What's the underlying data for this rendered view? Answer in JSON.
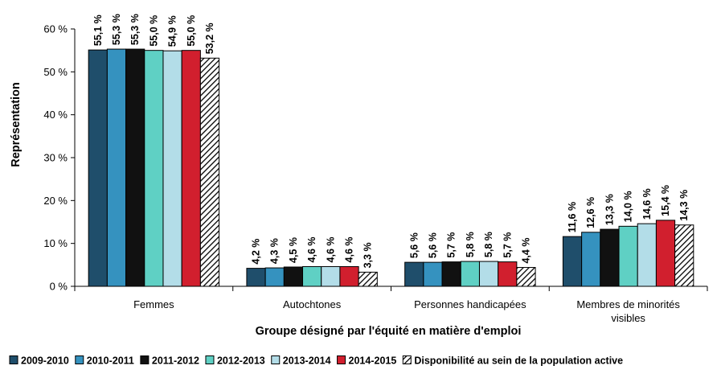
{
  "chart_data": {
    "type": "bar",
    "title": "",
    "xlabel": "Groupe désigné par l'équité en matière d'emploi",
    "ylabel": "Représentation",
    "ylim": [
      0,
      60
    ],
    "yticks": [
      0,
      10,
      20,
      30,
      40,
      50,
      60
    ],
    "ytick_labels": [
      "0 %",
      "10 %",
      "20 %",
      "30 %",
      "40 %",
      "50 %",
      "60 %"
    ],
    "categories": [
      [
        "Femmes"
      ],
      [
        "Autochtones"
      ],
      [
        "Personnes handicapées"
      ],
      [
        "Membres de minorités",
        "visibles"
      ]
    ],
    "series": [
      {
        "name": "2009-2010",
        "color": "#1f4e6b",
        "pattern": "solid",
        "values": [
          55.1,
          4.2,
          5.6,
          11.6
        ],
        "labels": [
          "55,1 %",
          "4,2 %",
          "5,6 %",
          "11,6 %"
        ]
      },
      {
        "name": "2010-2011",
        "color": "#3592bf",
        "pattern": "solid",
        "values": [
          55.3,
          4.3,
          5.6,
          12.6
        ],
        "labels": [
          "55,3 %",
          "4,3 %",
          "5,6 %",
          "12,6 %"
        ]
      },
      {
        "name": "2011-2012",
        "color": "#111111",
        "pattern": "solid",
        "values": [
          55.3,
          4.5,
          5.7,
          13.3
        ],
        "labels": [
          "55,3 %",
          "4,5 %",
          "5,7 %",
          "13,3 %"
        ]
      },
      {
        "name": "2012-2013",
        "color": "#5fd0c4",
        "pattern": "solid",
        "values": [
          55.0,
          4.6,
          5.8,
          14.0
        ],
        "labels": [
          "55,0 %",
          "4,6 %",
          "5,8 %",
          "14,0 %"
        ]
      },
      {
        "name": "2013-2014",
        "color": "#b3dde8",
        "pattern": "solid",
        "values": [
          54.9,
          4.6,
          5.8,
          14.6
        ],
        "labels": [
          "54,9 %",
          "4,6 %",
          "5,8 %",
          "14,6 %"
        ]
      },
      {
        "name": "2014-2015",
        "color": "#d11f2e",
        "pattern": "solid",
        "values": [
          55.0,
          4.6,
          5.7,
          15.4
        ],
        "labels": [
          "55,0 %",
          "4,6 %",
          "5,7 %",
          "15,4 %"
        ]
      },
      {
        "name": "Disponibilité au sein de la population active",
        "color": "#000000",
        "pattern": "hatch",
        "values": [
          53.2,
          3.3,
          4.4,
          14.3
        ],
        "labels": [
          "53,2 %",
          "3,3 %",
          "4,4 %",
          "14,3 %"
        ]
      }
    ],
    "legend_position": "bottom",
    "grid": false
  }
}
